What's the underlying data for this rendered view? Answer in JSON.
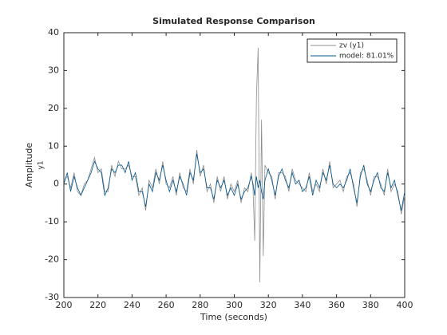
{
  "chart_data": {
    "type": "line",
    "title": "Simulated Response Comparison",
    "xlabel": "Time (seconds)",
    "ylabel": "Amplitude",
    "ylabel2": "y1",
    "x": [
      200,
      202,
      204,
      206,
      208,
      210,
      212,
      214,
      216,
      218,
      220,
      222,
      224,
      226,
      228,
      230,
      232,
      234,
      236,
      238,
      240,
      242,
      244,
      246,
      248,
      250,
      252,
      254,
      256,
      258,
      260,
      262,
      264,
      266,
      268,
      270,
      272,
      274,
      276,
      278,
      280,
      282,
      284,
      286,
      288,
      290,
      292,
      294,
      296,
      298,
      300,
      302,
      304,
      306,
      308,
      310,
      311,
      312,
      313,
      314,
      315,
      316,
      317,
      318,
      320,
      322,
      324,
      326,
      328,
      330,
      332,
      334,
      336,
      338,
      340,
      342,
      344,
      346,
      348,
      350,
      352,
      354,
      356,
      358,
      360,
      362,
      364,
      366,
      368,
      370,
      372,
      374,
      376,
      378,
      380,
      382,
      384,
      386,
      388,
      390,
      392,
      394,
      396,
      398,
      400
    ],
    "series": [
      {
        "name": "zv (y1)",
        "color": "#8c8c8c",
        "values": [
          1,
          2,
          -1,
          3,
          -2,
          -3,
          0,
          1,
          4,
          7,
          3,
          4,
          -2,
          -2,
          5,
          2,
          6,
          4,
          4,
          5,
          2,
          2,
          -3,
          -1,
          -7,
          1,
          -1,
          4,
          0,
          6,
          0,
          -1,
          2,
          -3,
          3,
          -1,
          -2,
          4,
          0,
          9,
          2,
          5,
          -2,
          0,
          -5,
          2,
          -2,
          2,
          -4,
          0,
          -2,
          1,
          -5,
          -1,
          -2,
          3,
          -1,
          -15,
          23,
          36,
          -26,
          17,
          -19,
          5,
          3,
          2,
          -4,
          3,
          3,
          2,
          -2,
          4,
          1,
          0,
          -1,
          -2,
          3,
          -2,
          0,
          -2,
          4,
          0,
          6,
          -1,
          0,
          1,
          -2,
          2,
          3,
          0,
          -6,
          3,
          4,
          1,
          -3,
          2,
          2,
          0,
          -3,
          4,
          -2,
          0,
          -2,
          -8,
          -3
        ]
      },
      {
        "name": "model: 81.01%",
        "color": "#00558c",
        "values": [
          0,
          3,
          -2,
          2,
          -1,
          -3,
          -1,
          1,
          3,
          6,
          4,
          3,
          -3,
          -1,
          4,
          3,
          5,
          5,
          3,
          6,
          1,
          3,
          -2,
          -2,
          -6,
          0,
          -2,
          3,
          1,
          5,
          1,
          -2,
          1,
          -2,
          2,
          0,
          -3,
          3,
          1,
          8,
          3,
          4,
          -1,
          -1,
          -4,
          1,
          -1,
          1,
          -3,
          -1,
          -3,
          0,
          -4,
          -2,
          -1,
          2,
          0,
          -3,
          2,
          -1,
          1,
          -2,
          -4,
          1,
          4,
          1,
          -3,
          2,
          4,
          1,
          -1,
          3,
          0,
          1,
          -2,
          -1,
          2,
          -3,
          1,
          -1,
          3,
          1,
          5,
          0,
          -1,
          0,
          -1,
          1,
          4,
          -1,
          -5,
          2,
          5,
          0,
          -2,
          1,
          3,
          -1,
          -2,
          3,
          -1,
          1,
          -3,
          -7,
          -2
        ]
      }
    ],
    "xlim": [
      200,
      400
    ],
    "xticks": [
      200,
      220,
      240,
      260,
      280,
      300,
      320,
      340,
      360,
      380,
      400
    ],
    "ylim": [
      -30,
      40
    ],
    "yticks": [
      -30,
      -20,
      -10,
      0,
      10,
      20,
      30,
      40
    ],
    "legend": "northeast",
    "grid": false
  }
}
